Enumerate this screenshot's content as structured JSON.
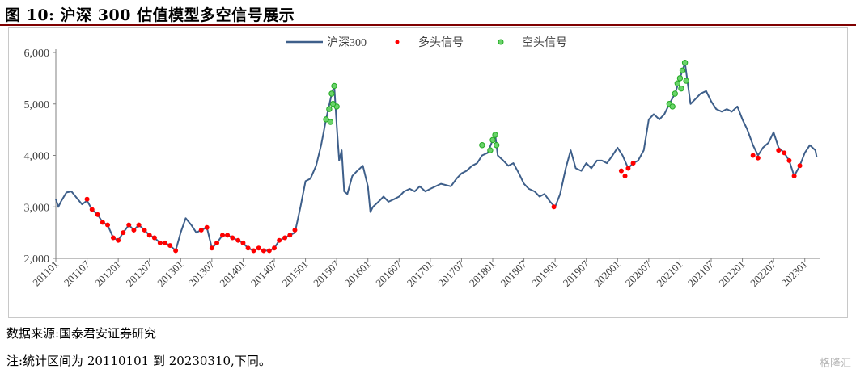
{
  "figure": {
    "title": "图 10:  沪深 300 估值模型多空信号展示"
  },
  "footer": {
    "source": "数据来源:国泰君安证券研究",
    "note": "注:统计区间为 20110101 到 20230310,下同。"
  },
  "watermark": "格隆汇",
  "colors": {
    "line": "#3e5f8a",
    "long": "#ff0000",
    "short": "#22aa22",
    "title_rule": "#7f0000"
  },
  "chart_data": {
    "type": "line",
    "legend": [
      "沪深300",
      "多头信号",
      "空头信号"
    ],
    "legend_position": "top-center",
    "grid": false,
    "ylim": [
      2000,
      6000
    ],
    "yticks": [
      "2,000",
      "3,000",
      "4,000",
      "5,000",
      "6,000"
    ],
    "xticks": [
      "201101",
      "201107",
      "201201",
      "201207",
      "201301",
      "201307",
      "201401",
      "201407",
      "201501",
      "201507",
      "201601",
      "201607",
      "201701",
      "201707",
      "201801",
      "201807",
      "201901",
      "201907",
      "202001",
      "202007",
      "202101",
      "202107",
      "202201",
      "202207",
      "202301"
    ],
    "x_domain": [
      2011.0,
      2023.25
    ],
    "series": [
      {
        "name": "沪深300",
        "points": [
          [
            2011.0,
            3150
          ],
          [
            2011.04,
            3000
          ],
          [
            2011.08,
            3100
          ],
          [
            2011.17,
            3280
          ],
          [
            2011.25,
            3300
          ],
          [
            2011.33,
            3180
          ],
          [
            2011.42,
            3050
          ],
          [
            2011.5,
            3120
          ],
          [
            2011.58,
            2950
          ],
          [
            2011.67,
            2850
          ],
          [
            2011.75,
            2700
          ],
          [
            2011.83,
            2650
          ],
          [
            2011.92,
            2400
          ],
          [
            2012.0,
            2350
          ],
          [
            2012.08,
            2500
          ],
          [
            2012.17,
            2650
          ],
          [
            2012.25,
            2550
          ],
          [
            2012.33,
            2650
          ],
          [
            2012.42,
            2550
          ],
          [
            2012.5,
            2450
          ],
          [
            2012.58,
            2400
          ],
          [
            2012.67,
            2300
          ],
          [
            2012.75,
            2300
          ],
          [
            2012.83,
            2250
          ],
          [
            2012.92,
            2150
          ],
          [
            2013.0,
            2500
          ],
          [
            2013.08,
            2780
          ],
          [
            2013.17,
            2650
          ],
          [
            2013.25,
            2500
          ],
          [
            2013.33,
            2550
          ],
          [
            2013.42,
            2600
          ],
          [
            2013.5,
            2200
          ],
          [
            2013.58,
            2300
          ],
          [
            2013.67,
            2450
          ],
          [
            2013.75,
            2450
          ],
          [
            2013.83,
            2400
          ],
          [
            2013.92,
            2350
          ],
          [
            2014.0,
            2300
          ],
          [
            2014.08,
            2200
          ],
          [
            2014.17,
            2150
          ],
          [
            2014.25,
            2200
          ],
          [
            2014.33,
            2150
          ],
          [
            2014.42,
            2150
          ],
          [
            2014.5,
            2200
          ],
          [
            2014.58,
            2350
          ],
          [
            2014.67,
            2400
          ],
          [
            2014.75,
            2450
          ],
          [
            2014.83,
            2500
          ],
          [
            2014.92,
            3000
          ],
          [
            2015.0,
            3500
          ],
          [
            2015.08,
            3550
          ],
          [
            2015.17,
            3800
          ],
          [
            2015.25,
            4200
          ],
          [
            2015.33,
            4700
          ],
          [
            2015.42,
            5200
          ],
          [
            2015.46,
            5350
          ],
          [
            2015.5,
            4600
          ],
          [
            2015.54,
            3900
          ],
          [
            2015.58,
            4100
          ],
          [
            2015.62,
            3300
          ],
          [
            2015.67,
            3250
          ],
          [
            2015.75,
            3600
          ],
          [
            2015.83,
            3700
          ],
          [
            2015.92,
            3800
          ],
          [
            2016.0,
            3400
          ],
          [
            2016.04,
            2900
          ],
          [
            2016.08,
            3000
          ],
          [
            2016.17,
            3100
          ],
          [
            2016.25,
            3200
          ],
          [
            2016.33,
            3100
          ],
          [
            2016.42,
            3150
          ],
          [
            2016.5,
            3200
          ],
          [
            2016.58,
            3300
          ],
          [
            2016.67,
            3350
          ],
          [
            2016.75,
            3300
          ],
          [
            2016.83,
            3400
          ],
          [
            2016.92,
            3300
          ],
          [
            2017.0,
            3350
          ],
          [
            2017.17,
            3450
          ],
          [
            2017.33,
            3400
          ],
          [
            2017.42,
            3550
          ],
          [
            2017.5,
            3650
          ],
          [
            2017.58,
            3700
          ],
          [
            2017.67,
            3800
          ],
          [
            2017.75,
            3850
          ],
          [
            2017.83,
            4000
          ],
          [
            2017.92,
            4050
          ],
          [
            2018.0,
            4300
          ],
          [
            2018.04,
            4400
          ],
          [
            2018.08,
            4000
          ],
          [
            2018.17,
            3900
          ],
          [
            2018.25,
            3800
          ],
          [
            2018.33,
            3850
          ],
          [
            2018.42,
            3650
          ],
          [
            2018.5,
            3450
          ],
          [
            2018.58,
            3350
          ],
          [
            2018.67,
            3300
          ],
          [
            2018.75,
            3200
          ],
          [
            2018.83,
            3250
          ],
          [
            2018.92,
            3100
          ],
          [
            2019.0,
            3000
          ],
          [
            2019.08,
            3250
          ],
          [
            2019.17,
            3750
          ],
          [
            2019.25,
            4100
          ],
          [
            2019.33,
            3750
          ],
          [
            2019.42,
            3700
          ],
          [
            2019.5,
            3850
          ],
          [
            2019.58,
            3750
          ],
          [
            2019.67,
            3900
          ],
          [
            2019.75,
            3900
          ],
          [
            2019.83,
            3850
          ],
          [
            2019.92,
            4000
          ],
          [
            2020.0,
            4150
          ],
          [
            2020.08,
            4000
          ],
          [
            2020.17,
            3750
          ],
          [
            2020.25,
            3850
          ],
          [
            2020.33,
            3900
          ],
          [
            2020.42,
            4100
          ],
          [
            2020.5,
            4700
          ],
          [
            2020.58,
            4800
          ],
          [
            2020.67,
            4700
          ],
          [
            2020.75,
            4800
          ],
          [
            2020.83,
            5000
          ],
          [
            2020.92,
            5200
          ],
          [
            2021.0,
            5500
          ],
          [
            2021.08,
            5800
          ],
          [
            2021.17,
            5000
          ],
          [
            2021.25,
            5100
          ],
          [
            2021.33,
            5200
          ],
          [
            2021.42,
            5250
          ],
          [
            2021.5,
            5050
          ],
          [
            2021.58,
            4900
          ],
          [
            2021.67,
            4850
          ],
          [
            2021.75,
            4900
          ],
          [
            2021.83,
            4850
          ],
          [
            2021.92,
            4950
          ],
          [
            2022.0,
            4700
          ],
          [
            2022.08,
            4500
          ],
          [
            2022.17,
            4200
          ],
          [
            2022.25,
            4000
          ],
          [
            2022.33,
            4150
          ],
          [
            2022.42,
            4250
          ],
          [
            2022.5,
            4450
          ],
          [
            2022.58,
            4150
          ],
          [
            2022.67,
            4050
          ],
          [
            2022.75,
            3900
          ],
          [
            2022.83,
            3600
          ],
          [
            2022.92,
            3800
          ],
          [
            2023.0,
            4050
          ],
          [
            2023.08,
            4200
          ],
          [
            2023.17,
            4100
          ],
          [
            2023.19,
            3970
          ]
        ]
      },
      {
        "name": "多头信号",
        "points": [
          [
            2011.5,
            3150
          ],
          [
            2011.58,
            2950
          ],
          [
            2011.67,
            2850
          ],
          [
            2011.75,
            2700
          ],
          [
            2011.83,
            2650
          ],
          [
            2011.92,
            2400
          ],
          [
            2012.0,
            2350
          ],
          [
            2012.08,
            2500
          ],
          [
            2012.17,
            2650
          ],
          [
            2012.25,
            2550
          ],
          [
            2012.33,
            2650
          ],
          [
            2012.42,
            2550
          ],
          [
            2012.5,
            2450
          ],
          [
            2012.58,
            2400
          ],
          [
            2012.67,
            2300
          ],
          [
            2012.75,
            2300
          ],
          [
            2012.83,
            2250
          ],
          [
            2012.92,
            2150
          ],
          [
            2013.33,
            2550
          ],
          [
            2013.42,
            2600
          ],
          [
            2013.5,
            2200
          ],
          [
            2013.58,
            2300
          ],
          [
            2013.67,
            2450
          ],
          [
            2013.75,
            2450
          ],
          [
            2013.83,
            2400
          ],
          [
            2013.92,
            2350
          ],
          [
            2014.0,
            2300
          ],
          [
            2014.08,
            2200
          ],
          [
            2014.17,
            2150
          ],
          [
            2014.25,
            2200
          ],
          [
            2014.33,
            2150
          ],
          [
            2014.42,
            2150
          ],
          [
            2014.5,
            2200
          ],
          [
            2014.58,
            2350
          ],
          [
            2014.67,
            2400
          ],
          [
            2014.75,
            2450
          ],
          [
            2014.83,
            2550
          ],
          [
            2018.98,
            3000
          ],
          [
            2020.06,
            3700
          ],
          [
            2020.12,
            3600
          ],
          [
            2020.17,
            3750
          ],
          [
            2020.25,
            3850
          ],
          [
            2022.17,
            4000
          ],
          [
            2022.25,
            3950
          ],
          [
            2022.58,
            4100
          ],
          [
            2022.67,
            4050
          ],
          [
            2022.75,
            3900
          ],
          [
            2022.83,
            3600
          ],
          [
            2022.92,
            3800
          ]
        ]
      },
      {
        "name": "空头信号",
        "points": [
          [
            2015.33,
            4700
          ],
          [
            2015.38,
            4900
          ],
          [
            2015.42,
            5200
          ],
          [
            2015.46,
            5350
          ],
          [
            2015.5,
            4950
          ],
          [
            2015.4,
            4650
          ],
          [
            2015.44,
            5000
          ],
          [
            2017.83,
            4200
          ],
          [
            2017.96,
            4100
          ],
          [
            2018.0,
            4300
          ],
          [
            2018.04,
            4400
          ],
          [
            2018.06,
            4200
          ],
          [
            2020.83,
            5000
          ],
          [
            2020.88,
            4950
          ],
          [
            2020.92,
            5200
          ],
          [
            2020.96,
            5400
          ],
          [
            2021.0,
            5500
          ],
          [
            2021.04,
            5650
          ],
          [
            2021.08,
            5800
          ],
          [
            2021.1,
            5450
          ],
          [
            2021.02,
            5300
          ]
        ]
      }
    ]
  }
}
